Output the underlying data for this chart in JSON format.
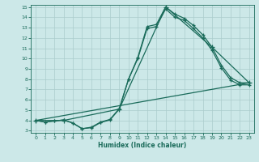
{
  "title": "",
  "xlabel": "Humidex (Indice chaleur)",
  "bg_color": "#cce8e8",
  "grid_color": "#aacccc",
  "line_color": "#1a6b5a",
  "xlim": [
    -0.5,
    23.5
  ],
  "ylim": [
    2.8,
    15.2
  ],
  "xticks": [
    0,
    1,
    2,
    3,
    4,
    5,
    6,
    7,
    8,
    9,
    10,
    11,
    12,
    13,
    14,
    15,
    16,
    17,
    18,
    19,
    20,
    21,
    22,
    23
  ],
  "yticks": [
    3,
    4,
    5,
    6,
    7,
    8,
    9,
    10,
    11,
    12,
    13,
    14,
    15
  ],
  "line1_x": [
    0,
    1,
    2,
    3,
    4,
    5,
    6,
    7,
    8,
    9,
    10,
    11,
    12,
    13,
    14,
    15,
    16,
    17,
    18,
    19,
    20,
    21,
    22,
    23
  ],
  "line1_y": [
    4.0,
    3.85,
    3.95,
    4.05,
    3.75,
    3.2,
    3.3,
    3.8,
    4.05,
    5.1,
    8.0,
    10.1,
    13.1,
    13.3,
    15.0,
    14.3,
    13.9,
    13.2,
    12.3,
    11.1,
    9.35,
    8.15,
    7.65,
    7.65
  ],
  "line2_x": [
    0,
    1,
    2,
    3,
    4,
    5,
    6,
    7,
    8,
    9,
    10,
    11,
    12,
    13,
    14,
    15,
    16,
    17,
    18,
    19,
    20,
    21,
    22,
    23
  ],
  "line2_y": [
    4.0,
    3.85,
    3.95,
    4.05,
    3.75,
    3.2,
    3.35,
    3.85,
    4.1,
    5.15,
    8.0,
    10.0,
    12.9,
    13.1,
    14.8,
    14.0,
    13.7,
    12.9,
    12.0,
    10.8,
    9.1,
    7.9,
    7.45,
    7.45
  ],
  "line3_x": [
    0,
    3,
    9,
    14,
    19,
    23
  ],
  "line3_y": [
    4.0,
    4.0,
    5.1,
    15.0,
    11.1,
    7.65
  ],
  "line4_x": [
    0,
    23
  ],
  "line4_y": [
    4.0,
    7.65
  ]
}
